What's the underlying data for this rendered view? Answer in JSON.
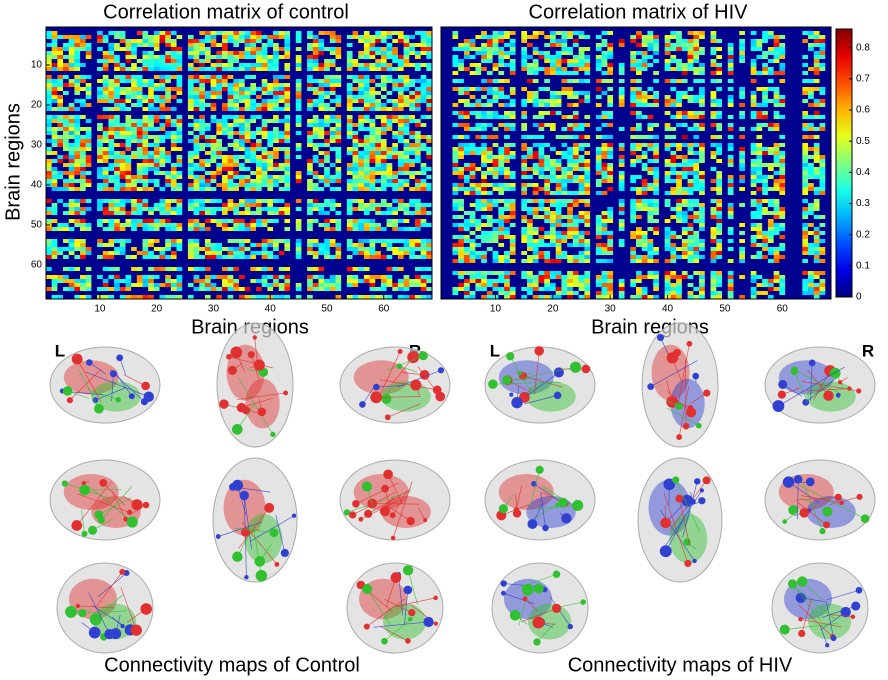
{
  "ylabel": "Brain regions",
  "panels": [
    {
      "title": "Correlation matrix of control",
      "xlabel": "Brain regions",
      "xlim": [
        0.5,
        68.5
      ],
      "ylim": [
        0.5,
        68.5
      ],
      "xticks": [
        10,
        20,
        30,
        40,
        50,
        60
      ],
      "yticks": [
        10,
        20,
        30,
        40,
        50,
        60
      ]
    },
    {
      "title": "Correlation matrix of HIV",
      "xlabel": "Brain regions",
      "xlim": [
        0.5,
        68.5
      ],
      "ylim": [
        0.5,
        68.5
      ],
      "xticks": [
        10,
        20,
        30,
        40,
        50,
        60
      ]
    }
  ],
  "colorbar": {
    "lim": [
      0,
      0.86
    ],
    "ticks": [
      0,
      0.1,
      0.2,
      0.3,
      0.4,
      0.5,
      0.6,
      0.7,
      0.8
    ]
  },
  "brains": [
    {
      "title": "Connectivity maps of Control",
      "left": "L",
      "right": "R"
    },
    {
      "title": "Connectivity maps of HIV",
      "left": "L",
      "right": "R"
    }
  ]
}
